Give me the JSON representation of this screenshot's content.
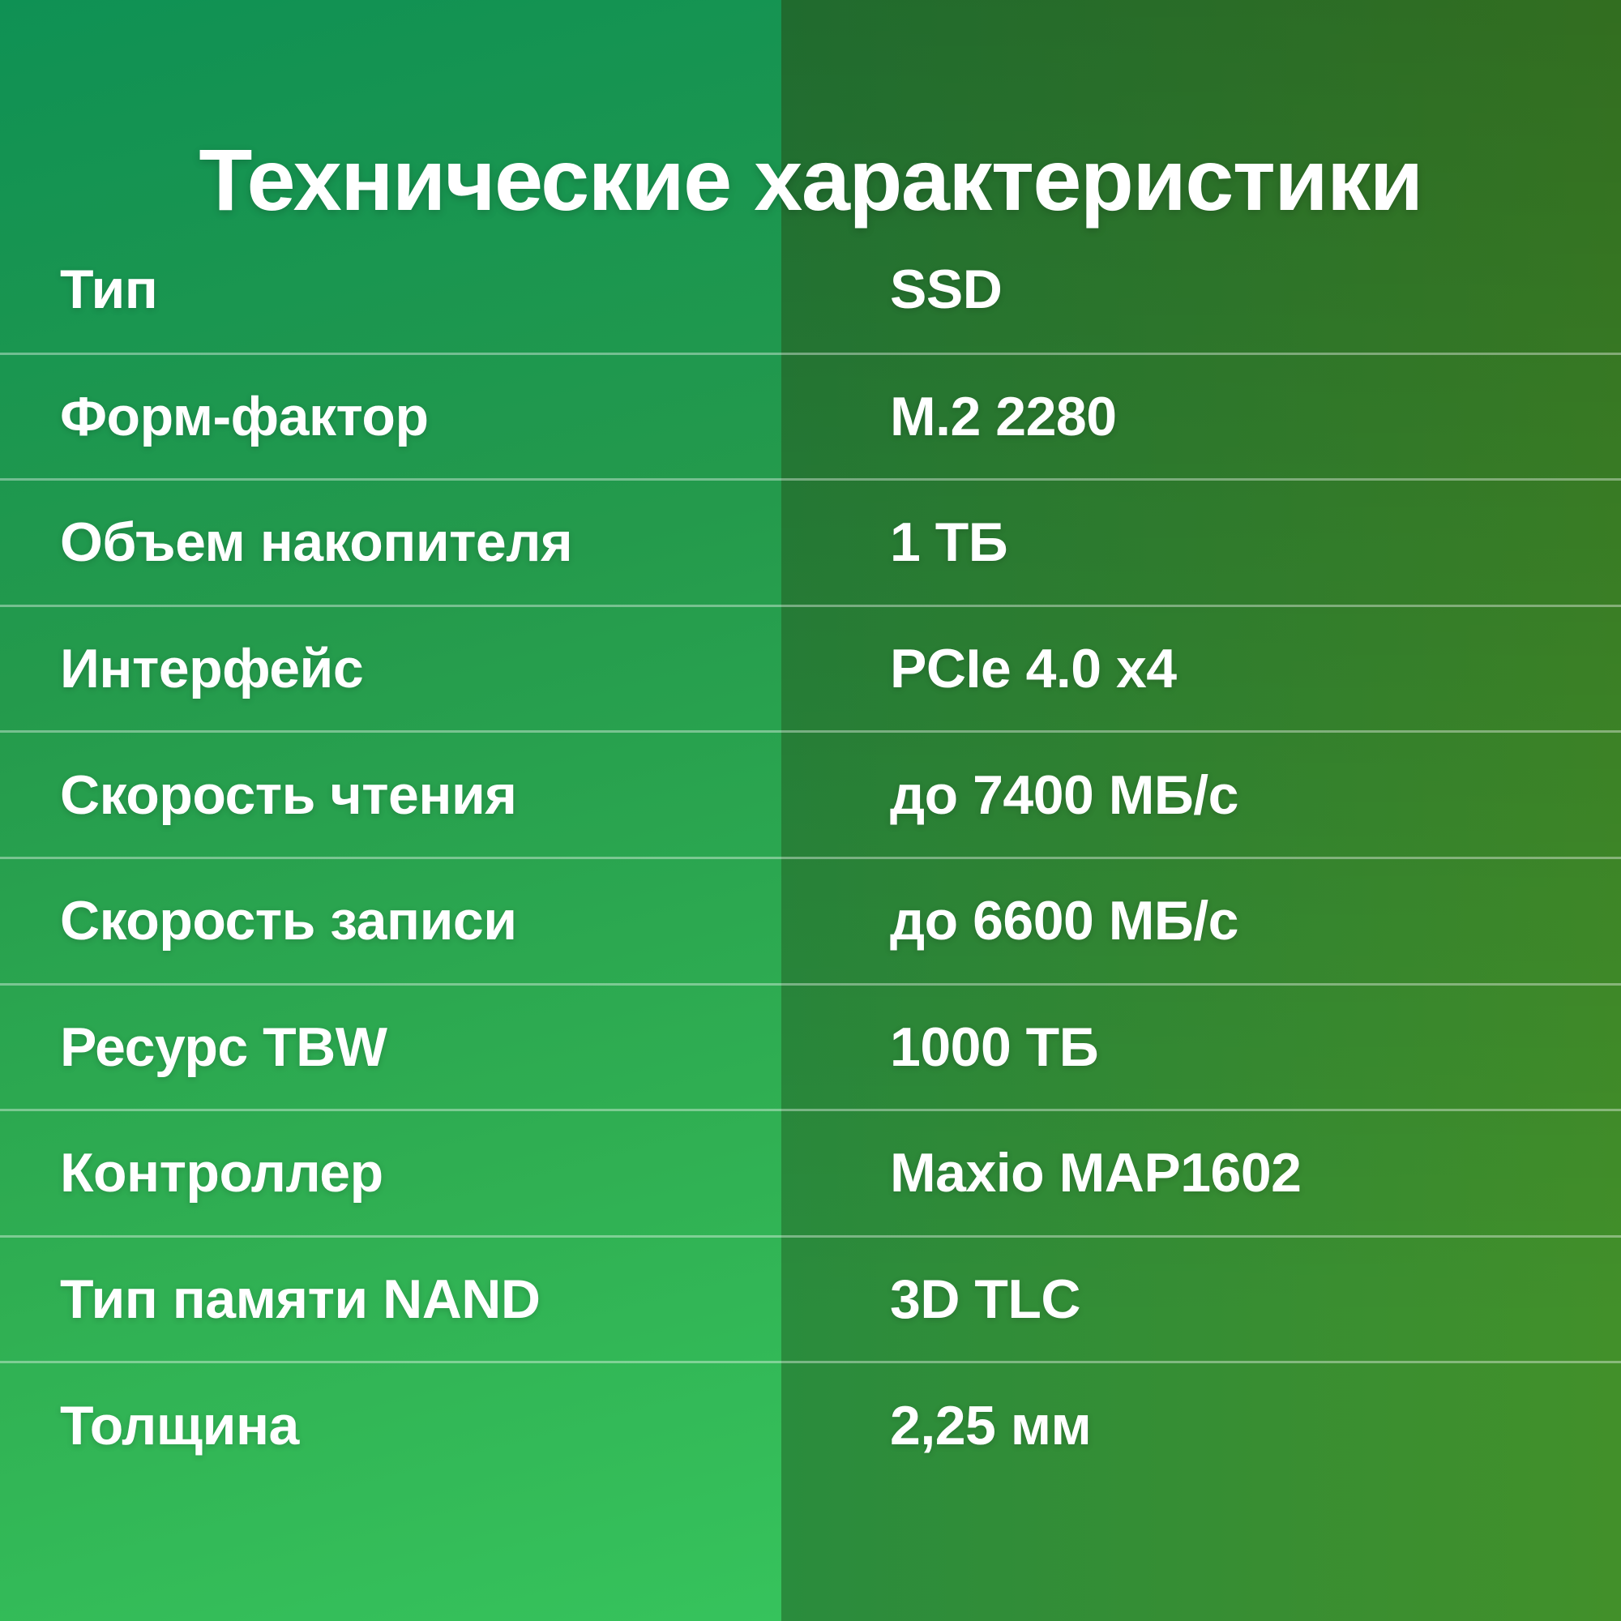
{
  "title": "Технические характеристики",
  "table": {
    "rows": [
      {
        "label": "Тип",
        "value": "SSD"
      },
      {
        "label": "Форм-фактор",
        "value": "M.2 2280"
      },
      {
        "label": "Объем накопителя",
        "value": "1 ТБ"
      },
      {
        "label": "Интерфейс",
        "value": "PCIe 4.0 x4"
      },
      {
        "label": "Скорость чтения",
        "value": "до 7400 МБ/с"
      },
      {
        "label": "Скорость записи",
        "value": "до 6600 МБ/с"
      },
      {
        "label": "Ресурс TBW",
        "value": "1000 ТБ"
      },
      {
        "label": "Контроллер",
        "value": "Maxio MAP1602"
      },
      {
        "label": "Тип памяти NAND",
        "value": "3D TLC"
      },
      {
        "label": "Толщина",
        "value": "2,25 мм"
      }
    ]
  },
  "colors": {
    "text": "#ffffff",
    "divider": "#ffffff61",
    "left_gradient_top": "#0f9154",
    "left_gradient_bottom": "#36c35c",
    "right_gradient_dark": "#1f6c2f",
    "right_gradient_olive": "#42902a"
  }
}
